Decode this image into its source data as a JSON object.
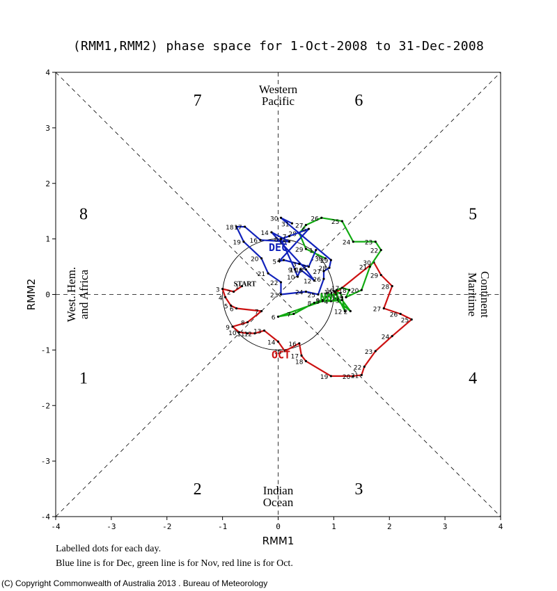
{
  "title": "(RMM1,RMM2) phase space for  1-Oct-2008 to 31-Dec-2008",
  "chart_data": {
    "type": "scatter",
    "title": "(RMM1,RMM2) phase space for  1-Oct-2008 to 31-Dec-2008",
    "xlabel": "RMM1",
    "ylabel": "RMM2",
    "xlim": [
      -4,
      4
    ],
    "ylim": [
      -4,
      4
    ],
    "xticks": [
      "-4",
      "-3",
      "-2",
      "-1",
      "0",
      "1",
      "2",
      "3",
      "4"
    ],
    "yticks": [
      "-4",
      "-3",
      "-2",
      "-1",
      "0",
      "1",
      "2",
      "3",
      "4"
    ],
    "unit_circle_radius": 1,
    "phases": [
      {
        "label": "1",
        "x": -3.5,
        "y": -1.5
      },
      {
        "label": "2",
        "x": -1.45,
        "y": -3.5
      },
      {
        "label": "3",
        "x": 1.45,
        "y": -3.5
      },
      {
        "label": "4",
        "x": 3.5,
        "y": -1.5
      },
      {
        "label": "5",
        "x": 3.5,
        "y": 1.45
      },
      {
        "label": "6",
        "x": 1.45,
        "y": 3.5
      },
      {
        "label": "7",
        "x": -1.45,
        "y": 3.5
      },
      {
        "label": "8",
        "x": -3.5,
        "y": 1.45
      }
    ],
    "regions": {
      "top": [
        "Western",
        "Pacific"
      ],
      "bottom": [
        "Indian",
        "Ocean"
      ],
      "left": [
        "West. Hem.",
        "and Africa"
      ],
      "right": [
        "Maritime",
        "Continent"
      ]
    },
    "start_label": "START",
    "series": [
      {
        "name": "OCT",
        "color": "#cc1111",
        "label_pos": {
          "x": 0.05,
          "y": -1.15
        },
        "points": [
          {
            "d": "1",
            "x": -0.65,
            "y": 0.15
          },
          {
            "d": "2",
            "x": -0.8,
            "y": 0.05
          },
          {
            "d": "3",
            "x": -1.0,
            "y": 0.1
          },
          {
            "d": "4",
            "x": -0.95,
            "y": -0.05
          },
          {
            "d": "5",
            "x": -0.85,
            "y": -0.2
          },
          {
            "d": "6",
            "x": -0.75,
            "y": -0.25
          },
          {
            "d": "7",
            "x": -0.3,
            "y": -0.3
          },
          {
            "d": "8",
            "x": -0.55,
            "y": -0.5
          },
          {
            "d": "9",
            "x": -0.82,
            "y": -0.58
          },
          {
            "d": "10",
            "x": -0.7,
            "y": -0.68
          },
          {
            "d": "11",
            "x": -0.55,
            "y": -0.7
          },
          {
            "d": "12",
            "x": -0.42,
            "y": -0.7
          },
          {
            "d": "13",
            "x": -0.25,
            "y": -0.65
          },
          {
            "d": "14",
            "x": 0.0,
            "y": -0.85
          },
          {
            "d": "15",
            "x": 0.12,
            "y": -1.02
          },
          {
            "d": "16",
            "x": 0.38,
            "y": -0.88
          },
          {
            "d": "17",
            "x": 0.42,
            "y": -1.1
          },
          {
            "d": "18",
            "x": 0.5,
            "y": -1.2
          },
          {
            "d": "19",
            "x": 0.95,
            "y": -1.47
          },
          {
            "d": "20",
            "x": 1.35,
            "y": -1.47
          },
          {
            "d": "21",
            "x": 1.5,
            "y": -1.45
          },
          {
            "d": "22",
            "x": 1.55,
            "y": -1.3
          },
          {
            "d": "23",
            "x": 1.75,
            "y": -1.02
          },
          {
            "d": "24",
            "x": 2.05,
            "y": -0.75
          },
          {
            "d": "25",
            "x": 2.4,
            "y": -0.45
          },
          {
            "d": "26",
            "x": 2.2,
            "y": -0.35
          },
          {
            "d": "27",
            "x": 1.9,
            "y": -0.25
          },
          {
            "d": "28",
            "x": 2.05,
            "y": 0.15
          },
          {
            "d": "29",
            "x": 1.85,
            "y": 0.35
          },
          {
            "d": "30",
            "x": 1.72,
            "y": 0.58
          },
          {
            "d": "31",
            "x": 1.0,
            "y": 0.0
          }
        ]
      },
      {
        "name": "NOV",
        "color": "#11aa11",
        "label_pos": {
          "x": 0.92,
          "y": -0.12
        },
        "points": [
          {
            "d": "1",
            "x": 1.02,
            "y": -0.07
          },
          {
            "d": "2",
            "x": 1.3,
            "y": -0.3
          },
          {
            "d": "3",
            "x": 1.15,
            "y": -0.1
          },
          {
            "d": "4",
            "x": 0.95,
            "y": -0.12
          },
          {
            "d": "5",
            "x": 0.8,
            "y": -0.12
          },
          {
            "d": "6",
            "x": 0.0,
            "y": -0.4
          },
          {
            "d": "7",
            "x": 0.28,
            "y": -0.35
          },
          {
            "d": "8",
            "x": 0.65,
            "y": -0.15
          },
          {
            "d": "9",
            "x": 0.8,
            "y": -0.1
          },
          {
            "d": "10",
            "x": 0.95,
            "y": 0.0
          },
          {
            "d": "11",
            "x": 1.05,
            "y": 0.0
          },
          {
            "d": "12",
            "x": 1.2,
            "y": -0.3
          },
          {
            "d": "13",
            "x": 1.15,
            "y": -0.05
          },
          {
            "d": "14",
            "x": 1.12,
            "y": 0.02
          },
          {
            "d": "15",
            "x": 1.02,
            "y": 0.05
          },
          {
            "d": "16",
            "x": 1.05,
            "y": 0.08
          },
          {
            "d": "17",
            "x": 1.15,
            "y": 0.12
          },
          {
            "d": "18",
            "x": 1.28,
            "y": 0.08
          },
          {
            "d": "19",
            "x": 1.22,
            "y": -0.05
          },
          {
            "d": "20",
            "x": 1.5,
            "y": 0.08
          },
          {
            "d": "21",
            "x": 1.65,
            "y": 0.5
          },
          {
            "d": "22",
            "x": 1.85,
            "y": 0.8
          },
          {
            "d": "23",
            "x": 1.75,
            "y": 0.95
          },
          {
            "d": "24",
            "x": 1.35,
            "y": 0.95
          },
          {
            "d": "25",
            "x": 1.15,
            "y": 1.32
          },
          {
            "d": "26",
            "x": 0.78,
            "y": 1.38
          },
          {
            "d": "27",
            "x": 0.5,
            "y": 1.25
          },
          {
            "d": "28",
            "x": 0.38,
            "y": 1.1
          },
          {
            "d": "29",
            "x": 0.5,
            "y": 0.82
          },
          {
            "d": "30",
            "x": 0.85,
            "y": 0.65
          }
        ]
      },
      {
        "name": "DEC",
        "color": "#1122bb",
        "label_pos": {
          "x": 0.0,
          "y": 0.78
        },
        "points": [
          {
            "d": "1",
            "x": 0.68,
            "y": 0.8
          },
          {
            "d": "2",
            "x": 0.55,
            "y": 0.5
          },
          {
            "d": "3",
            "x": 0.38,
            "y": 0.55
          },
          {
            "d": "4",
            "x": 0.1,
            "y": 0.62
          },
          {
            "d": "5",
            "x": 0.02,
            "y": 0.6
          },
          {
            "d": "6",
            "x": 0.55,
            "y": 1.18
          },
          {
            "d": "7",
            "x": 0.2,
            "y": 1.05
          },
          {
            "d": "8",
            "x": 0.05,
            "y": 1.0
          },
          {
            "d": "9",
            "x": 0.3,
            "y": 0.45
          },
          {
            "d": "10",
            "x": 0.35,
            "y": 0.32
          },
          {
            "d": "11",
            "x": 0.4,
            "y": 0.45
          },
          {
            "d": "12",
            "x": 0.65,
            "y": 0.25
          },
          {
            "d": "13",
            "x": 0.5,
            "y": 0.45
          },
          {
            "d": "14",
            "x": -0.12,
            "y": 1.12
          },
          {
            "d": "15",
            "x": 0.2,
            "y": 0.95
          },
          {
            "d": "16",
            "x": -0.32,
            "y": 0.98
          },
          {
            "d": "17",
            "x": -0.6,
            "y": 1.22
          },
          {
            "d": "18",
            "x": -0.75,
            "y": 1.22
          },
          {
            "d": "19",
            "x": -0.62,
            "y": 0.95
          },
          {
            "d": "20",
            "x": -0.3,
            "y": 0.65
          },
          {
            "d": "21",
            "x": -0.18,
            "y": 0.38
          },
          {
            "d": "22",
            "x": 0.05,
            "y": 0.22
          },
          {
            "d": "23",
            "x": 0.05,
            "y": 0.0
          },
          {
            "d": "24",
            "x": 0.5,
            "y": 0.05
          },
          {
            "d": "25",
            "x": 0.72,
            "y": 0.0
          },
          {
            "d": "26",
            "x": 0.82,
            "y": 0.28
          },
          {
            "d": "27",
            "x": 0.82,
            "y": 0.42
          },
          {
            "d": "28",
            "x": 0.92,
            "y": 0.48
          },
          {
            "d": "29",
            "x": 0.95,
            "y": 0.62
          },
          {
            "d": "30",
            "x": 0.05,
            "y": 1.38
          },
          {
            "d": "31",
            "x": 0.25,
            "y": 1.28
          }
        ]
      }
    ]
  },
  "notes": [
    "Labelled dots for each day.",
    "Blue line is for Dec, green line is for Nov, red line is for Oct."
  ],
  "copyright": "(C) Copyright Commonwealth of Australia 2013 . Bureau of Meteorology"
}
